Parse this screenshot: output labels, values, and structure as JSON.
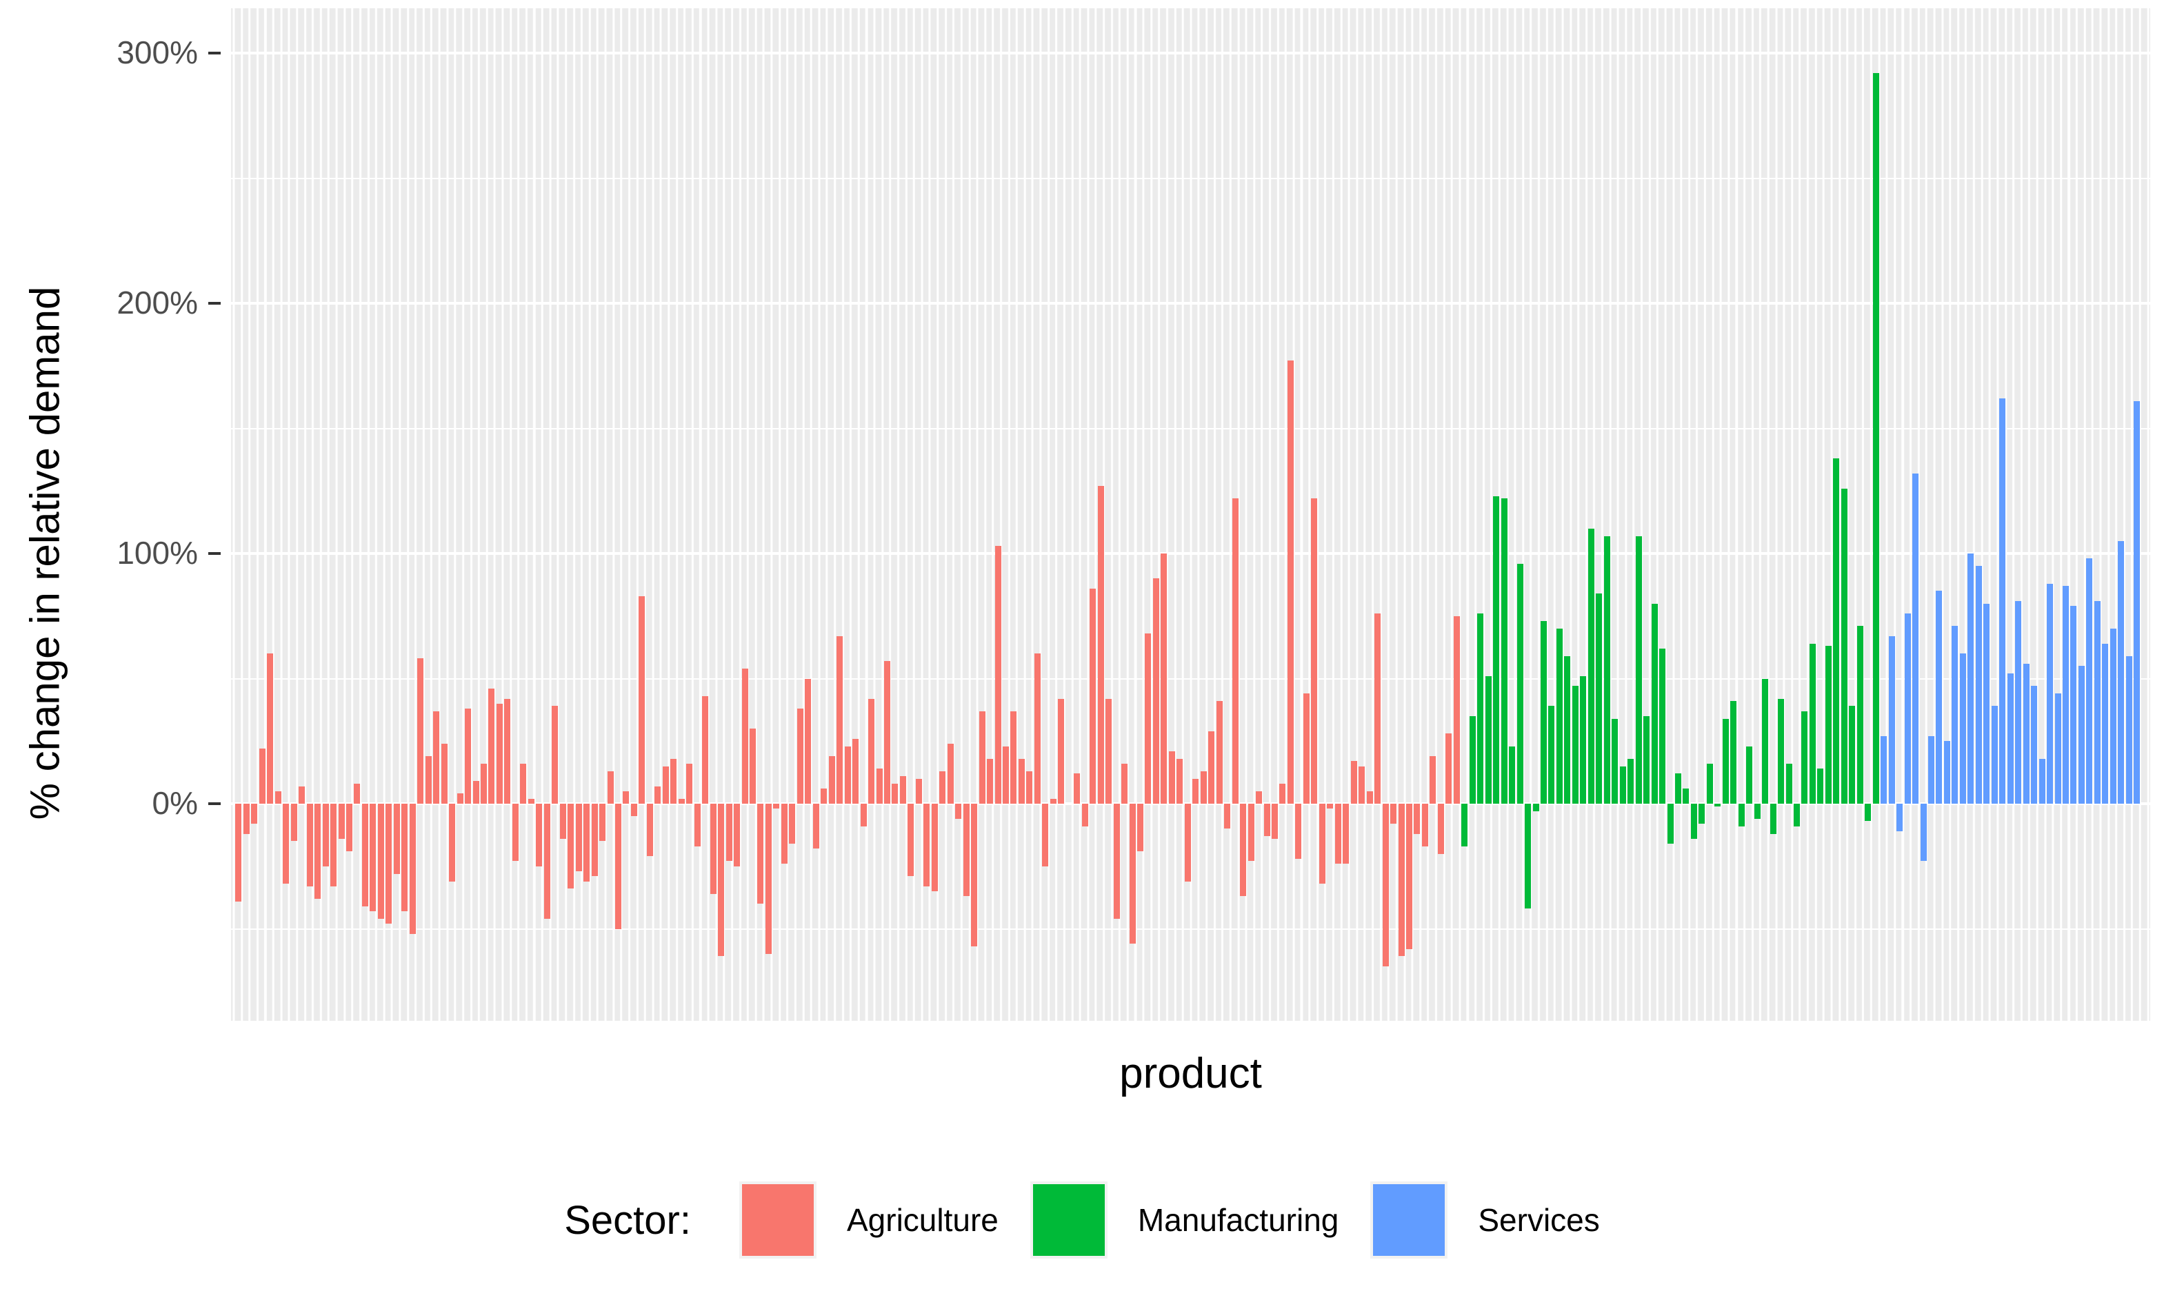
{
  "chart_data": {
    "type": "bar",
    "title": "",
    "xlabel": "product",
    "ylabel": "% change in relative demand",
    "legend_title": "Sector:",
    "y_ticks": [
      {
        "label": "0%",
        "value": 0
      },
      {
        "label": "100%",
        "value": 100
      },
      {
        "label": "200%",
        "value": 200
      },
      {
        "label": "300%",
        "value": 300
      }
    ],
    "ylim": [
      -86,
      309
    ],
    "grid": "horizontal white major lines every 100%, minor every 50%, vertical white stripe per category, gray panel",
    "panel_color": "#EBEBEB",
    "gridline_color": "#FFFFFF",
    "axis_text_color": "#4D4D4D",
    "legend_position": "bottom",
    "series": [
      {
        "name": "Agriculture",
        "color": "#F8766D",
        "values": [
          -39,
          -12,
          -8,
          22,
          60,
          5,
          -32,
          -15,
          7,
          -33,
          -38,
          -25,
          -33,
          -14,
          -19,
          8,
          -41,
          -43,
          -46,
          -48,
          -28,
          -43,
          -52,
          58,
          19,
          37,
          24,
          -31,
          4,
          38,
          9,
          16,
          46,
          40,
          42,
          -23,
          16,
          2,
          -25,
          -46,
          39,
          -14,
          -34,
          -27,
          -31,
          -29,
          -15,
          13,
          -50,
          5,
          -5,
          83,
          -21,
          7,
          15,
          18,
          2,
          16,
          -17,
          43,
          -36,
          -61,
          -23,
          -25,
          54,
          30,
          -40,
          -60,
          -2,
          -24,
          -16,
          38,
          50,
          -18,
          6,
          19,
          67,
          23,
          26,
          -9,
          42,
          14,
          57,
          8,
          11,
          -29,
          10,
          -33,
          -35,
          13,
          24,
          -6,
          -37,
          -57,
          37,
          18,
          103,
          23,
          37,
          18,
          13,
          60,
          -25,
          2,
          42,
          0,
          12,
          -9,
          86,
          127,
          42,
          -46,
          16,
          -56,
          -19,
          68,
          90,
          100,
          21,
          18,
          -31,
          10,
          13,
          29,
          41,
          -10,
          122,
          -37,
          -23,
          5,
          -13,
          -14,
          8,
          177,
          -22,
          44,
          122,
          -32,
          -2,
          -24,
          -24,
          17,
          15,
          5,
          76,
          -65,
          -8,
          -61,
          -58,
          -12,
          -17,
          19,
          -20,
          28,
          75
        ]
      },
      {
        "name": "Manufacturing",
        "color": "#00BA38",
        "values": [
          -17,
          35,
          76,
          51,
          123,
          122,
          23,
          96,
          -42,
          -3,
          73,
          39,
          70,
          59,
          47,
          51,
          110,
          84,
          107,
          34,
          15,
          18,
          107,
          35,
          80,
          62,
          -16,
          12,
          6,
          -14,
          -8,
          16,
          -1,
          34,
          41,
          -9,
          23,
          -6,
          50,
          -12,
          42,
          16,
          -9,
          37,
          64,
          14,
          63,
          138,
          126,
          39,
          71,
          -7,
          292
        ]
      },
      {
        "name": "Services",
        "color": "#619CFF",
        "values": [
          27,
          67,
          -11,
          76,
          132,
          -23,
          27,
          85,
          25,
          71,
          60,
          100,
          95,
          80,
          39,
          162,
          52,
          81,
          56,
          47,
          18,
          88,
          44,
          87,
          79,
          55,
          98,
          81,
          64,
          70,
          105,
          59,
          161
        ]
      }
    ]
  },
  "legend": {
    "title": "Sector:",
    "items": [
      {
        "label": "Agriculture",
        "color": "#F8766D"
      },
      {
        "label": "Manufacturing",
        "color": "#00BA38"
      },
      {
        "label": "Services",
        "color": "#619CFF"
      }
    ]
  }
}
